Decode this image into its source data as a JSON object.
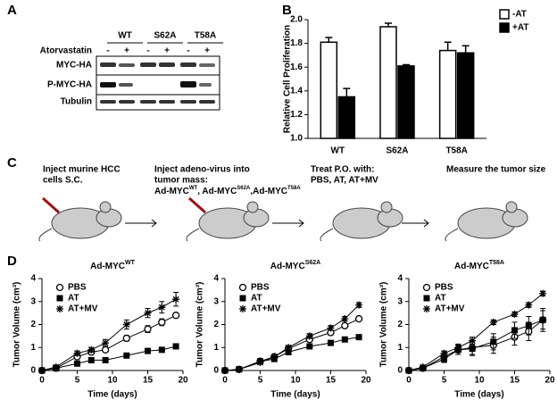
{
  "labels": {
    "a": "A",
    "b": "B",
    "c": "C",
    "d": "D"
  },
  "panel_a": {
    "groups": [
      "WT",
      "S62A",
      "T58A"
    ],
    "treatment": "Atorvastatin",
    "lanes": [
      "-",
      "+",
      "-",
      "+",
      "-",
      "+"
    ],
    "rows": [
      "MYC-HA",
      "P-MYC-HA",
      "Tubulin"
    ]
  },
  "panel_c": {
    "steps": [
      {
        "lines": [
          "Inject murine HCC",
          "cells S.C."
        ]
      },
      {
        "lines": [
          "Inject adeno-virus into",
          "tumor mass:"
        ],
        "constructs": [
          {
            "base": "Ad-MYC",
            "sup": "WT",
            "sep": ", "
          },
          {
            "base": "Ad-MYC",
            "sup": "S62A",
            "sep": ","
          },
          {
            "base": "Ad-MYC",
            "sup": "T58A"
          }
        ]
      },
      {
        "lines": [
          "Treat P.O. with:",
          "PBS, AT, AT+MV"
        ]
      },
      {
        "lines": [
          "Measure the tumor size"
        ]
      }
    ]
  },
  "chart_data": [
    {
      "type": "bar",
      "ylabel": "Relative Cell Proliferation",
      "categories": [
        "WT",
        "S62A",
        "T58A"
      ],
      "series": [
        {
          "name": "-AT",
          "color": "#ffffff",
          "values": [
            1.81,
            1.94,
            1.74
          ],
          "errors": [
            0.04,
            0.03,
            0.07
          ]
        },
        {
          "name": "+AT",
          "color": "#000000",
          "values": [
            1.35,
            1.61,
            1.72
          ],
          "errors": [
            0.07,
            0.01,
            0.06
          ]
        }
      ],
      "ylim": [
        1.0,
        2.0
      ],
      "yticks": [
        {
          "value": 1,
          "label": "1.0"
        },
        1.2,
        1.4,
        1.6,
        1.8,
        {
          "value": 2,
          "label": "2.0"
        }
      ],
      "legend": "right"
    },
    {
      "type": "line",
      "title": "Ad-MYC",
      "title_sup": "WT",
      "xlabel": "Time (days)",
      "ylabel": "Tumor Volume (cm³)",
      "x": [
        0,
        2,
        5,
        7,
        9,
        12,
        15,
        17,
        19
      ],
      "xlim": [
        0,
        20
      ],
      "xticks": [
        0,
        5,
        10,
        15,
        20
      ],
      "ylim": [
        0,
        4
      ],
      "yticks": [
        0,
        1,
        2,
        3,
        4
      ],
      "legend": "upper left",
      "series": [
        {
          "name": "PBS",
          "marker": "circle",
          "values": [
            0,
            0.1,
            0.6,
            0.8,
            0.9,
            1.4,
            1.8,
            2.1,
            2.4
          ],
          "errors": [
            0,
            0.03,
            0.08,
            0.1,
            0.1,
            0.12,
            0.15,
            0.15,
            0.1
          ]
        },
        {
          "name": "AT",
          "marker": "square",
          "values": [
            0,
            0.1,
            0.3,
            0.45,
            0.45,
            0.65,
            0.85,
            0.9,
            1.05
          ],
          "errors": [
            0,
            0.03,
            0.05,
            0.05,
            0.05,
            0.08,
            0.08,
            0.08,
            0.1
          ]
        },
        {
          "name": "AT+MV",
          "marker": "asterisk",
          "values": [
            0,
            0.15,
            0.75,
            0.9,
            1.2,
            2.0,
            2.5,
            2.75,
            3.1
          ],
          "errors": [
            0,
            0.03,
            0.1,
            0.1,
            0.15,
            0.2,
            0.2,
            0.25,
            0.3
          ]
        }
      ]
    },
    {
      "type": "line",
      "title": "Ad-MYC",
      "title_sup": "S62A",
      "xlabel": "Time (days)",
      "ylabel": "Tumor Volume (cm³)",
      "x": [
        0,
        2,
        5,
        7,
        9,
        12,
        15,
        17,
        19
      ],
      "xlim": [
        0,
        20
      ],
      "xticks": [
        0,
        5,
        10,
        15,
        20
      ],
      "ylim": [
        0,
        4
      ],
      "yticks": [
        0,
        1,
        2,
        3,
        4
      ],
      "legend": "upper left",
      "series": [
        {
          "name": "PBS",
          "marker": "circle",
          "values": [
            0,
            0.05,
            0.4,
            0.6,
            0.95,
            1.35,
            1.65,
            1.95,
            2.25
          ],
          "errors": [
            0,
            0.02,
            0.05,
            0.05,
            0.08,
            0.1,
            0.1,
            0.1,
            0.1
          ]
        },
        {
          "name": "AT",
          "marker": "square",
          "values": [
            0,
            0.05,
            0.4,
            0.5,
            0.8,
            1.05,
            1.2,
            1.35,
            1.45
          ],
          "errors": [
            0,
            0.02,
            0.05,
            0.05,
            0.08,
            0.1,
            0.1,
            0.1,
            0.08
          ]
        },
        {
          "name": "AT+MV",
          "marker": "asterisk",
          "values": [
            0,
            0.05,
            0.35,
            0.6,
            1.0,
            1.5,
            1.85,
            2.25,
            2.85
          ],
          "errors": [
            0,
            0.02,
            0.05,
            0.05,
            0.08,
            0.1,
            0.1,
            0.1,
            0.1
          ]
        }
      ]
    },
    {
      "type": "line",
      "title": "Ad-MYC",
      "title_sup": "T58A",
      "xlabel": "Time (days)",
      "ylabel": "Tumor Volume (cm³)",
      "x": [
        0,
        2,
        5,
        7,
        9,
        12,
        15,
        17,
        19
      ],
      "xlim": [
        0,
        20
      ],
      "xticks": [
        0,
        5,
        10,
        15,
        20
      ],
      "ylim": [
        0,
        4
      ],
      "yticks": [
        0,
        1,
        2,
        3,
        4
      ],
      "legend": "upper left",
      "series": [
        {
          "name": "PBS",
          "marker": "circle",
          "values": [
            0,
            0.1,
            0.6,
            0.9,
            1.0,
            1.1,
            1.45,
            1.7,
            2.2
          ],
          "errors": [
            0,
            0.05,
            0.15,
            0.2,
            0.3,
            0.35,
            0.35,
            0.4,
            0.4
          ]
        },
        {
          "name": "AT",
          "marker": "square",
          "values": [
            0,
            0.1,
            0.5,
            0.9,
            0.95,
            1.25,
            1.75,
            1.95,
            2.2
          ],
          "errors": [
            0,
            0.05,
            0.15,
            0.2,
            0.3,
            0.35,
            0.35,
            0.4,
            0.5
          ]
        },
        {
          "name": "AT+MV",
          "marker": "asterisk",
          "values": [
            0,
            0.15,
            0.75,
            1.0,
            1.3,
            2.1,
            2.45,
            2.85,
            3.35
          ],
          "errors": [
            0,
            0.05,
            0.1,
            0.15,
            0.15,
            0.1,
            0.1,
            0.1,
            0.1
          ]
        }
      ]
    }
  ]
}
